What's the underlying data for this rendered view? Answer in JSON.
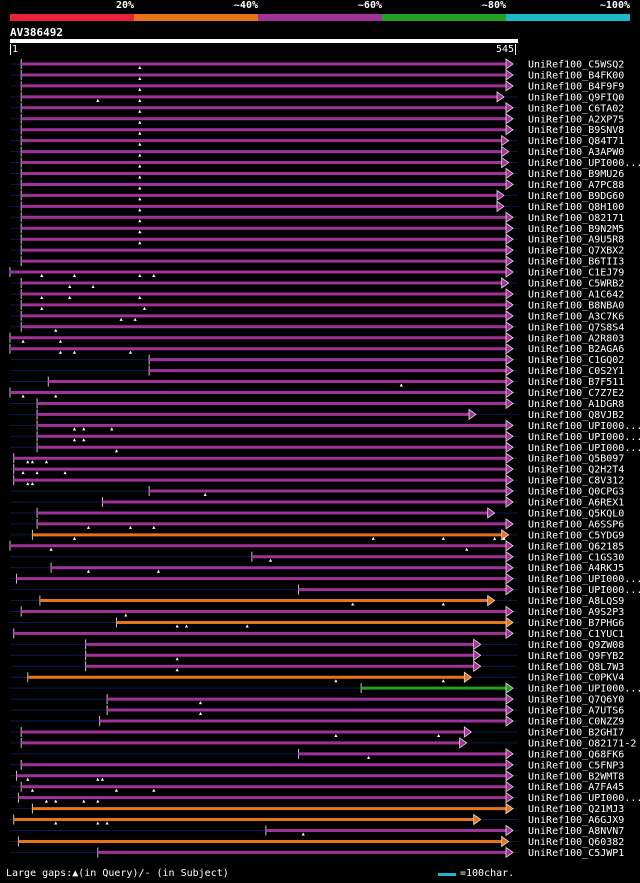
{
  "legend": {
    "labels": [
      "20%",
      "~40%",
      "~60%",
      "~80%",
      "~100%"
    ],
    "colors": [
      "#e8223a",
      "#e8741a",
      "#a0329a",
      "#22a022",
      "#1ab8c8"
    ]
  },
  "query": {
    "name": "AV386492",
    "start": "1",
    "end": "545",
    "length": 545
  },
  "footer": {
    "gap_note": "Large gaps:▲(in Query)/- (in Subject)",
    "scale_label": "=100char."
  },
  "hits": [
    {
      "name": "UniRef100_C5WSQ2",
      "q": [
        13,
        545
      ],
      "c": "purple",
      "gaps": [
        140
      ]
    },
    {
      "name": "UniRef100_B4FK00",
      "q": [
        13,
        545
      ],
      "c": "purple",
      "gaps": [
        140
      ]
    },
    {
      "name": "UniRef100_B4F9F9",
      "q": [
        13,
        545
      ],
      "c": "purple",
      "gaps": [
        140
      ]
    },
    {
      "name": "UniRef100_Q9FIQ0",
      "q": [
        13,
        530
      ],
      "c": "purple",
      "gaps": [
        95,
        140
      ]
    },
    {
      "name": "UniRef100_C6TA02",
      "q": [
        13,
        545
      ],
      "c": "purple",
      "gaps": [
        140
      ]
    },
    {
      "name": "UniRef100_A2XP75",
      "q": [
        13,
        545
      ],
      "c": "purple",
      "gaps": [
        140
      ]
    },
    {
      "name": "UniRef100_B9SNV8",
      "q": [
        13,
        540
      ],
      "c": "purple",
      "gaps": [
        140
      ]
    },
    {
      "name": "UniRef100_Q84T71",
      "q": [
        13,
        535
      ],
      "c": "purple",
      "gaps": [
        140
      ]
    },
    {
      "name": "UniRef100_A3APW0",
      "q": [
        13,
        535
      ],
      "c": "purple",
      "gaps": [
        140
      ]
    },
    {
      "name": "UniRef100_UPI000...",
      "q": [
        13,
        535
      ],
      "c": "purple",
      "gaps": [
        140
      ]
    },
    {
      "name": "UniRef100_B9MU26",
      "q": [
        13,
        545
      ],
      "c": "purple",
      "gaps": [
        140
      ]
    },
    {
      "name": "UniRef100_A7PC88",
      "q": [
        13,
        545
      ],
      "c": "purple",
      "gaps": [
        140
      ]
    },
    {
      "name": "UniRef100_B9DG60",
      "q": [
        13,
        530
      ],
      "c": "purple",
      "gaps": [
        140
      ]
    },
    {
      "name": "UniRef100_Q8H100",
      "q": [
        13,
        530
      ],
      "c": "purple",
      "gaps": [
        140
      ]
    },
    {
      "name": "UniRef100_O82171",
      "q": [
        13,
        545
      ],
      "c": "purple",
      "gaps": [
        140
      ]
    },
    {
      "name": "UniRef100_B9N2M5",
      "q": [
        13,
        545
      ],
      "c": "purple",
      "gaps": [
        140
      ]
    },
    {
      "name": "UniRef100_A9U5R8",
      "q": [
        13,
        545
      ],
      "c": "purple",
      "gaps": [
        140
      ]
    },
    {
      "name": "UniRef100_Q7XBX2",
      "q": [
        13,
        555
      ],
      "c": "purple",
      "gaps": []
    },
    {
      "name": "UniRef100_B6TII3",
      "q": [
        13,
        555
      ],
      "c": "purple",
      "gaps": []
    },
    {
      "name": "UniRef100_C1EJ79",
      "q": [
        1,
        545
      ],
      "c": "purple",
      "gaps": [
        35,
        70,
        140,
        155
      ]
    },
    {
      "name": "UniRef100_C5WRB2",
      "q": [
        13,
        535
      ],
      "c": "purple",
      "gaps": [
        65,
        90
      ]
    },
    {
      "name": "UniRef100_A1C642",
      "q": [
        13,
        545
      ],
      "c": "purple",
      "gaps": [
        35,
        65,
        140
      ]
    },
    {
      "name": "UniRef100_B8NBA0",
      "q": [
        13,
        545
      ],
      "c": "purple",
      "gaps": [
        35,
        145
      ]
    },
    {
      "name": "UniRef100_A3C7K6",
      "q": [
        13,
        555
      ],
      "c": "purple",
      "gaps": [
        120,
        135
      ]
    },
    {
      "name": "UniRef100_Q7S8S4",
      "q": [
        13,
        545
      ],
      "c": "purple",
      "gaps": [
        50
      ]
    },
    {
      "name": "UniRef100_A2R803",
      "q": [
        1,
        545
      ],
      "c": "purple",
      "gaps": [
        15,
        55
      ]
    },
    {
      "name": "UniRef100_B2AGA6",
      "q": [
        1,
        545
      ],
      "c": "purple",
      "gaps": [
        55,
        70,
        130
      ]
    },
    {
      "name": "UniRef100_C1GQ02",
      "q": [
        150,
        545
      ],
      "c": "purple",
      "gaps": []
    },
    {
      "name": "UniRef100_C0S2Y1",
      "q": [
        150,
        545
      ],
      "c": "purple",
      "gaps": []
    },
    {
      "name": "UniRef100_B7F511",
      "q": [
        42,
        545
      ],
      "c": "purple",
      "gaps": [
        420
      ]
    },
    {
      "name": "UniRef100_C7Z7E2",
      "q": [
        1,
        545
      ],
      "c": "purple",
      "gaps": [
        15,
        50
      ]
    },
    {
      "name": "UniRef100_A1DGR8",
      "q": [
        30,
        545
      ],
      "c": "purple",
      "gaps": []
    },
    {
      "name": "UniRef100_Q8VJB2",
      "q": [
        30,
        500
      ],
      "c": "purple",
      "gaps": []
    },
    {
      "name": "UniRef100_UPI000...",
      "q": [
        30,
        555
      ],
      "c": "purple",
      "gaps": [
        70,
        80,
        110
      ]
    },
    {
      "name": "UniRef100_UPI000...",
      "q": [
        30,
        555
      ],
      "c": "purple",
      "gaps": [
        70,
        80
      ]
    },
    {
      "name": "UniRef100_UPI000...",
      "q": [
        30,
        545
      ],
      "c": "purple",
      "gaps": [
        115
      ]
    },
    {
      "name": "UniRef100_Q5B097",
      "q": [
        5,
        545
      ],
      "c": "purple",
      "gaps": [
        20,
        25,
        40
      ]
    },
    {
      "name": "UniRef100_Q2H2T4",
      "q": [
        5,
        545
      ],
      "c": "purple",
      "gaps": [
        15,
        30,
        60
      ]
    },
    {
      "name": "UniRef100_C8V312",
      "q": [
        5,
        545
      ],
      "c": "purple",
      "gaps": [
        20,
        25
      ]
    },
    {
      "name": "UniRef100_Q0CPG3",
      "q": [
        150,
        545
      ],
      "c": "purple",
      "gaps": [
        210
      ]
    },
    {
      "name": "UniRef100_A6REX1",
      "q": [
        100,
        545
      ],
      "c": "purple",
      "gaps": []
    },
    {
      "name": "UniRef100_Q5KQL0",
      "q": [
        30,
        520
      ],
      "c": "purple",
      "gaps": []
    },
    {
      "name": "UniRef100_A6SSP6",
      "q": [
        30,
        545
      ],
      "c": "purple",
      "gaps": [
        85,
        130,
        155
      ]
    },
    {
      "name": "UniRef100_C5YDG9",
      "q": [
        25,
        535
      ],
      "c": "orange",
      "gaps": [
        70,
        390,
        465,
        520,
        530
      ]
    },
    {
      "name": "UniRef100_Q62185",
      "q": [
        1,
        545
      ],
      "c": "purple",
      "gaps": [
        45,
        490
      ]
    },
    {
      "name": "UniRef100_C1GS30",
      "q": [
        260,
        545
      ],
      "c": "purple",
      "gaps": [
        280
      ]
    },
    {
      "name": "UniRef100_A4RKJ5",
      "q": [
        45,
        545
      ],
      "c": "purple",
      "gaps": [
        85,
        160
      ]
    },
    {
      "name": "UniRef100_UPI000...",
      "q": [
        8,
        545
      ],
      "c": "purple",
      "gaps": []
    },
    {
      "name": "UniRef100_UPI000...",
      "q": [
        310,
        545
      ],
      "c": "purple",
      "gaps": []
    },
    {
      "name": "UniRef100_A8LQS9",
      "q": [
        33,
        520
      ],
      "c": "orange",
      "gaps": [
        368,
        465
      ]
    },
    {
      "name": "UniRef100_A9S2P3",
      "q": [
        13,
        545
      ],
      "c": "purple",
      "gaps": [
        125
      ]
    },
    {
      "name": "UniRef100_B7PHG6",
      "q": [
        115,
        555
      ],
      "c": "orange",
      "gaps": [
        180,
        190,
        255
      ]
    },
    {
      "name": "UniRef100_C1YUC1",
      "q": [
        5,
        545
      ],
      "c": "purple",
      "gaps": []
    },
    {
      "name": "UniRef100_Q9ZW08",
      "q": [
        82,
        505
      ],
      "c": "purple",
      "gaps": []
    },
    {
      "name": "UniRef100_Q9FYB2",
      "q": [
        82,
        505
      ],
      "c": "purple",
      "gaps": [
        180
      ]
    },
    {
      "name": "UniRef100_Q8L7W3",
      "q": [
        82,
        505
      ],
      "c": "purple",
      "gaps": [
        180
      ]
    },
    {
      "name": "UniRef100_C0PKV4",
      "q": [
        20,
        495
      ],
      "c": "orange",
      "gaps": [
        350,
        465
      ]
    },
    {
      "name": "UniRef100_UPI000...",
      "q": [
        377,
        555
      ],
      "c": "green",
      "gaps": []
    },
    {
      "name": "UniRef100_Q7Q6Y0",
      "q": [
        105,
        545
      ],
      "c": "purple",
      "gaps": [
        205
      ]
    },
    {
      "name": "UniRef100_A7UTS6",
      "q": [
        105,
        545
      ],
      "c": "purple",
      "gaps": [
        205
      ]
    },
    {
      "name": "UniRef100_C0NZZ9",
      "q": [
        97,
        545
      ],
      "c": "purple",
      "gaps": []
    },
    {
      "name": "UniRef100_B2GHI7",
      "q": [
        13,
        495
      ],
      "c": "purple",
      "gaps": [
        350,
        460
      ]
    },
    {
      "name": "UniRef100_O82171-2",
      "q": [
        13,
        490
      ],
      "c": "purple",
      "gaps": []
    },
    {
      "name": "UniRef100_Q68FK6",
      "q": [
        310,
        545
      ],
      "c": "purple",
      "gaps": [
        385
      ]
    },
    {
      "name": "UniRef100_C5FNP3",
      "q": [
        13,
        545
      ],
      "c": "purple",
      "gaps": []
    },
    {
      "name": "UniRef100_B2WMT8",
      "q": [
        8,
        545
      ],
      "c": "purple",
      "gaps": [
        20,
        95,
        100
      ]
    },
    {
      "name": "UniRef100_A7FA45",
      "q": [
        13,
        545
      ],
      "c": "purple",
      "gaps": [
        25,
        115,
        155
      ]
    },
    {
      "name": "UniRef100_UPI000...",
      "q": [
        10,
        545
      ],
      "c": "purple",
      "gaps": [
        40,
        50,
        80,
        95
      ]
    },
    {
      "name": "UniRef100_Q21MJ3",
      "q": [
        25,
        555
      ],
      "c": "orange",
      "gaps": []
    },
    {
      "name": "UniRef100_A6GJX9",
      "q": [
        5,
        505
      ],
      "c": "orange",
      "gaps": [
        50,
        95,
        105
      ]
    },
    {
      "name": "UniRef100_A8NVN7",
      "q": [
        275,
        545
      ],
      "c": "purple",
      "gaps": [
        315
      ]
    },
    {
      "name": "UniRef100_Q60382",
      "q": [
        10,
        535
      ],
      "c": "orange",
      "gaps": []
    },
    {
      "name": "UniRef100_C5JWP1",
      "q": [
        95,
        545
      ],
      "c": "purple",
      "gaps": []
    }
  ]
}
